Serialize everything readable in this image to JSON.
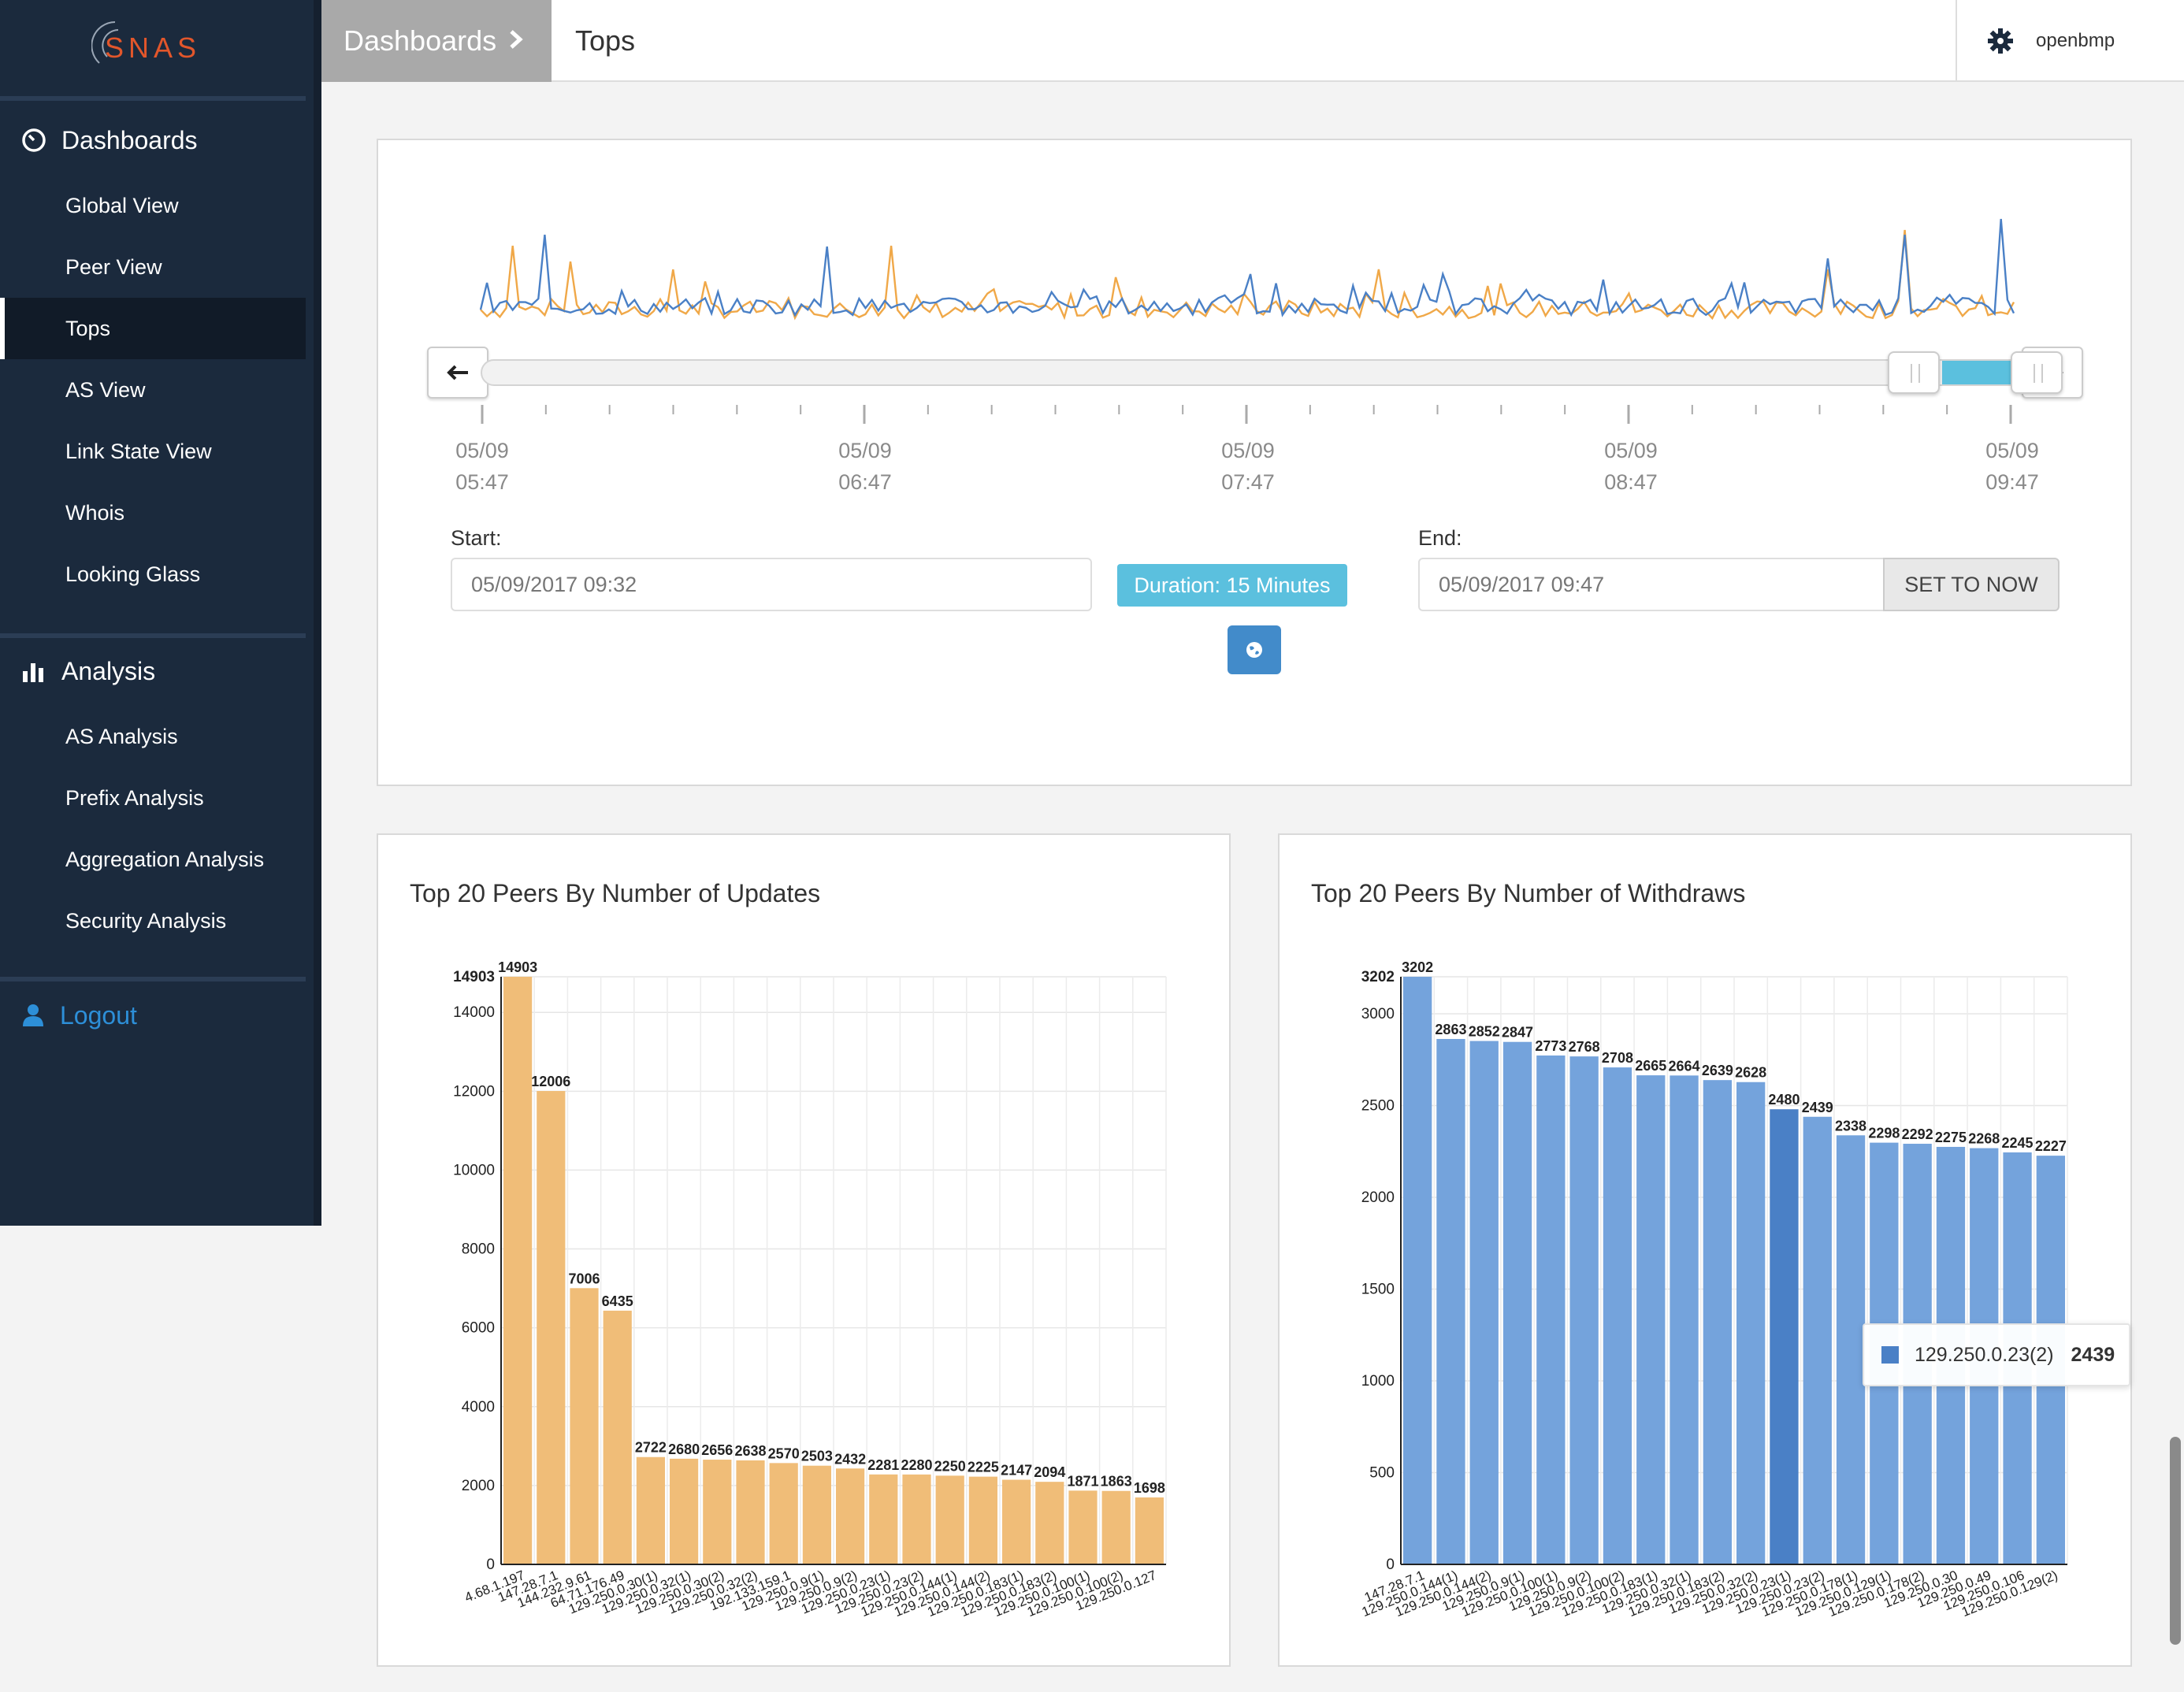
{
  "brand": {
    "logo_text": "SNAS"
  },
  "sidebar": {
    "sections": [
      {
        "title": "Dashboards",
        "icon": "dashboard-icon",
        "items": [
          {
            "label": "Global View"
          },
          {
            "label": "Peer View"
          },
          {
            "label": "Tops",
            "active": true
          },
          {
            "label": "AS View"
          },
          {
            "label": "Link State View"
          },
          {
            "label": "Whois"
          },
          {
            "label": "Looking Glass"
          }
        ]
      },
      {
        "title": "Analysis",
        "icon": "bar-chart-icon",
        "items": [
          {
            "label": "AS Analysis"
          },
          {
            "label": "Prefix Analysis"
          },
          {
            "label": "Aggregation Analysis"
          },
          {
            "label": "Security Analysis"
          }
        ]
      }
    ],
    "logout_label": "Logout"
  },
  "header": {
    "breadcrumb_root": "Dashboards",
    "breadcrumb_current": "Tops",
    "username": "openbmp"
  },
  "timeline": {
    "tick_dates": [
      "05/09",
      "05/09",
      "05/09",
      "05/09",
      "05/09"
    ],
    "tick_times": [
      "05:47",
      "06:47",
      "07:47",
      "08:47",
      "09:47"
    ],
    "start_label": "Start:",
    "start_value": "05/09/2017 09:32",
    "end_label": "End:",
    "end_value": "05/09/2017 09:47",
    "duration_label": "Duration: 15 Minutes",
    "set_now_label": "SET TO NOW",
    "selection_fraction": [
      0.955,
      1.0
    ],
    "colors": {
      "series_a": "#4a80c6",
      "series_b": "#f0a848",
      "selection": "#5bc0de"
    }
  },
  "chart_data": [
    {
      "type": "bar",
      "title": "Top 20 Peers By Number of Updates",
      "color": "#f0bd78",
      "ylim": [
        0,
        14903
      ],
      "yticks": [
        "0",
        "2000",
        "4000",
        "6000",
        "8000",
        "10000",
        "12000",
        "14000",
        "14903"
      ],
      "categories": [
        "4.68.1.197",
        "147.28.7.1",
        "144.232.9.61",
        "64.71.176.49",
        "129.250.0.30(1)",
        "129.250.0.32(1)",
        "129.250.0.30(2)",
        "129.250.0.32(2)",
        "192.133.159.1",
        "129.250.0.9(1)",
        "129.250.0.9(2)",
        "129.250.0.23(1)",
        "129.250.0.23(2)",
        "129.250.0.144(1)",
        "129.250.0.144(2)",
        "129.250.0.183(1)",
        "129.250.0.183(2)",
        "129.250.0.100(1)",
        "129.250.0.100(2)",
        "129.250.0.127"
      ],
      "values": [
        14903,
        12006,
        7006,
        6435,
        2722,
        2680,
        2656,
        2638,
        2570,
        2503,
        2432,
        2281,
        2280,
        2250,
        2225,
        2147,
        2094,
        1871,
        1863,
        1698
      ]
    },
    {
      "type": "bar",
      "title": "Top 20 Peers By Number of Withdraws",
      "color": "#74a3dc",
      "highlight_color": "#4a80c6",
      "highlight_index": 11,
      "ylim": [
        0,
        3202
      ],
      "yticks": [
        "0",
        "500",
        "1000",
        "1500",
        "2000",
        "2500",
        "3000",
        "3202"
      ],
      "categories": [
        "147.28.7.1",
        "129.250.0.144(1)",
        "129.250.0.144(2)",
        "129.250.0.9(1)",
        "129.250.0.100(1)",
        "129.250.0.9(2)",
        "129.250.0.100(2)",
        "129.250.0.183(1)",
        "129.250.0.32(1)",
        "129.250.0.183(2)",
        "129.250.0.32(2)",
        "129.250.0.23(1)",
        "129.250.0.23(2)",
        "129.250.0.178(1)",
        "129.250.0.129(1)",
        "129.250.0.178(2)",
        "129.250.0.30",
        "129.250.0.49",
        "129.250.0.106",
        "129.250.0.129(2)"
      ],
      "values": [
        3202,
        2863,
        2852,
        2847,
        2773,
        2768,
        2708,
        2665,
        2664,
        2639,
        2628,
        2480,
        2439,
        2338,
        2298,
        2292,
        2275,
        2268,
        2245,
        2227
      ],
      "tooltip": {
        "label": "129.250.0.23(2)",
        "value": "2439"
      }
    }
  ]
}
